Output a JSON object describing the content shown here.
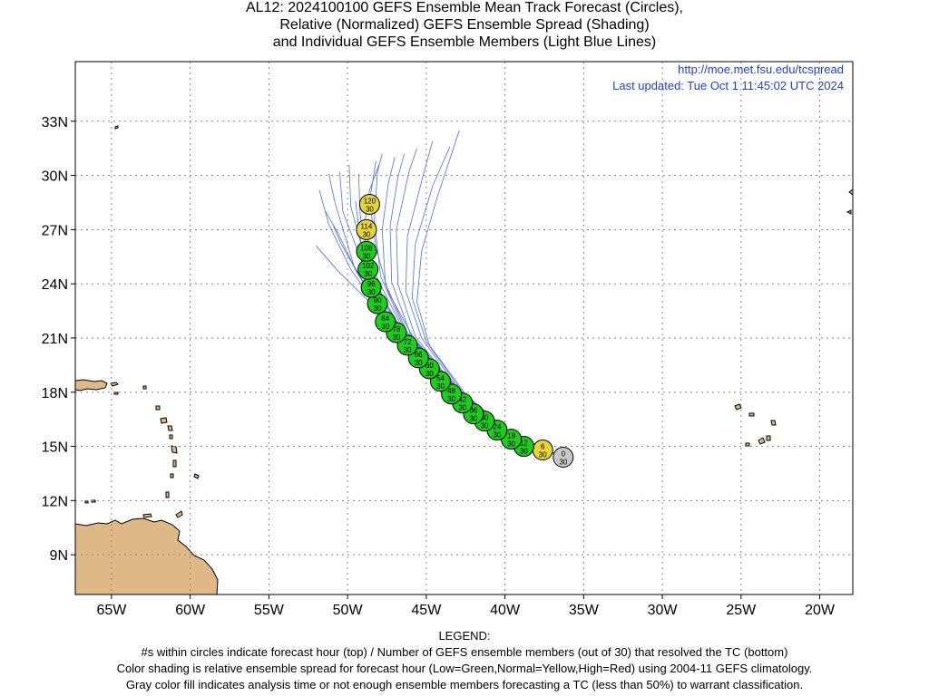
{
  "title": {
    "line1": "AL12: 2024100100 GEFS Ensemble Mean Track Forecast (Circles),",
    "line2": "Relative (Normalized) GEFS Ensemble Spread (Shading)",
    "line3": "and Individual GEFS Ensemble Members (Light Blue Lines)"
  },
  "info": {
    "url": "http://moe.met.fsu.edu/tcspread",
    "updated": "Last updated: Tue Oct 1 11:45:02 UTC 2024"
  },
  "map": {
    "lon_range": [
      -67.3,
      -17.9
    ],
    "lat_range": [
      6.8,
      36.3
    ],
    "lat_ticks": [
      {
        "value": 9,
        "label": "9N"
      },
      {
        "value": 12,
        "label": "12N"
      },
      {
        "value": 15,
        "label": "15N"
      },
      {
        "value": 18,
        "label": "18N"
      },
      {
        "value": 21,
        "label": "21N"
      },
      {
        "value": 24,
        "label": "24N"
      },
      {
        "value": 27,
        "label": "27N"
      },
      {
        "value": 30,
        "label": "30N"
      },
      {
        "value": 33,
        "label": "33N"
      }
    ],
    "lon_ticks": [
      {
        "value": -65,
        "label": "65W"
      },
      {
        "value": -60,
        "label": "60W"
      },
      {
        "value": -55,
        "label": "55W"
      },
      {
        "value": -50,
        "label": "50W"
      },
      {
        "value": -45,
        "label": "45W"
      },
      {
        "value": -40,
        "label": "40W"
      },
      {
        "value": -35,
        "label": "35W"
      },
      {
        "value": -30,
        "label": "30W"
      },
      {
        "value": -25,
        "label": "25W"
      },
      {
        "value": -20,
        "label": "20W"
      }
    ],
    "colors": {
      "land": "#deb887",
      "grid": "#888888",
      "member_track": "#4f6fe0",
      "low_spread": "#1ecc1e",
      "normal_spread": "#e6d53a",
      "analysis": "#c8c8c8"
    }
  },
  "forecast_points": [
    {
      "hour": "0",
      "members": "30",
      "lon": -36.3,
      "lat": 14.4,
      "spread": "analysis"
    },
    {
      "hour": "6",
      "members": "30",
      "lon": -37.6,
      "lat": 14.8,
      "spread": "normal"
    },
    {
      "hour": "12",
      "members": "30",
      "lon": -38.8,
      "lat": 15.0,
      "spread": "low"
    },
    {
      "hour": "18",
      "members": "30",
      "lon": -39.6,
      "lat": 15.4,
      "spread": "low"
    },
    {
      "hour": "24",
      "members": "30",
      "lon": -40.5,
      "lat": 15.9,
      "spread": "low"
    },
    {
      "hour": "30",
      "members": "30",
      "lon": -41.3,
      "lat": 16.4,
      "spread": "low"
    },
    {
      "hour": "36",
      "members": "30",
      "lon": -42.0,
      "lat": 16.8,
      "spread": "low"
    },
    {
      "hour": "42",
      "members": "30",
      "lon": -42.7,
      "lat": 17.4,
      "spread": "low"
    },
    {
      "hour": "48",
      "members": "30",
      "lon": -43.4,
      "lat": 17.9,
      "spread": "low"
    },
    {
      "hour": "54",
      "members": "30",
      "lon": -44.1,
      "lat": 18.6,
      "spread": "low"
    },
    {
      "hour": "60",
      "members": "30",
      "lon": -44.8,
      "lat": 19.3,
      "spread": "low"
    },
    {
      "hour": "66",
      "members": "30",
      "lon": -45.5,
      "lat": 19.9,
      "spread": "low"
    },
    {
      "hour": "72",
      "members": "30",
      "lon": -46.2,
      "lat": 20.6,
      "spread": "low"
    },
    {
      "hour": "78",
      "members": "30",
      "lon": -46.9,
      "lat": 21.3,
      "spread": "low"
    },
    {
      "hour": "84",
      "members": "30",
      "lon": -47.6,
      "lat": 21.9,
      "spread": "low"
    },
    {
      "hour": "90",
      "members": "30",
      "lon": -48.1,
      "lat": 22.9,
      "spread": "low"
    },
    {
      "hour": "96",
      "members": "30",
      "lon": -48.5,
      "lat": 23.8,
      "spread": "low"
    },
    {
      "hour": "102",
      "members": "30",
      "lon": -48.7,
      "lat": 24.8,
      "spread": "low"
    },
    {
      "hour": "108",
      "members": "30",
      "lon": -48.8,
      "lat": 25.8,
      "spread": "low"
    },
    {
      "hour": "114",
      "members": "30",
      "lon": -48.8,
      "lat": 27.0,
      "spread": "normal"
    },
    {
      "hour": "120",
      "members": "30",
      "lon": -48.6,
      "lat": 28.4,
      "spread": "normal"
    }
  ],
  "member_tracks": [
    [
      [
        -36.3,
        14.4
      ],
      [
        -40.5,
        16.0
      ],
      [
        -44.5,
        19.0
      ],
      [
        -47.8,
        22.3
      ],
      [
        -50.6,
        24.7
      ],
      [
        -52.0,
        26.1
      ]
    ],
    [
      [
        -36.3,
        14.4
      ],
      [
        -40.3,
        15.9
      ],
      [
        -44.2,
        18.8
      ],
      [
        -47.5,
        22.0
      ],
      [
        -49.8,
        24.8
      ],
      [
        -51.2,
        27.3
      ],
      [
        -51.8,
        29.2
      ]
    ],
    [
      [
        -36.3,
        14.4
      ],
      [
        -40.4,
        16.0
      ],
      [
        -44.3,
        19.0
      ],
      [
        -47.6,
        22.0
      ],
      [
        -49.6,
        25.0
      ],
      [
        -50.8,
        28.5
      ],
      [
        -51.2,
        30.1
      ]
    ],
    [
      [
        -36.3,
        14.4
      ],
      [
        -40.3,
        15.9
      ],
      [
        -44.0,
        18.9
      ],
      [
        -47.2,
        22.2
      ],
      [
        -49.0,
        25.0
      ],
      [
        -50.3,
        28.0
      ],
      [
        -50.5,
        30.2
      ]
    ],
    [
      [
        -36.3,
        14.4
      ],
      [
        -40.2,
        15.9
      ],
      [
        -43.9,
        18.7
      ],
      [
        -47.0,
        22.0
      ],
      [
        -48.8,
        25.1
      ],
      [
        -49.8,
        28.3
      ],
      [
        -49.9,
        30.6
      ]
    ],
    [
      [
        -36.3,
        14.4
      ],
      [
        -40.1,
        15.8
      ],
      [
        -43.7,
        18.6
      ],
      [
        -46.8,
        21.6
      ],
      [
        -48.5,
        24.6
      ],
      [
        -49.2,
        27.8
      ],
      [
        -49.3,
        30.1
      ]
    ],
    [
      [
        -36.3,
        14.4
      ],
      [
        -40.0,
        15.8
      ],
      [
        -43.5,
        18.5
      ],
      [
        -46.4,
        21.5
      ],
      [
        -47.9,
        24.4
      ],
      [
        -48.3,
        27.5
      ],
      [
        -48.1,
        30.2
      ],
      [
        -47.8,
        31.2
      ]
    ],
    [
      [
        -36.3,
        14.4
      ],
      [
        -39.9,
        15.7
      ],
      [
        -43.4,
        18.4
      ],
      [
        -46.2,
        21.3
      ],
      [
        -47.6,
        24.0
      ],
      [
        -47.8,
        27.0
      ],
      [
        -47.4,
        29.6
      ],
      [
        -47.0,
        31.0
      ]
    ],
    [
      [
        -36.3,
        14.4
      ],
      [
        -39.8,
        15.7
      ],
      [
        -43.3,
        18.3
      ],
      [
        -46.0,
        21.2
      ],
      [
        -47.2,
        24.1
      ],
      [
        -47.3,
        27.2
      ],
      [
        -46.8,
        29.9
      ],
      [
        -46.4,
        31.2
      ]
    ],
    [
      [
        -36.3,
        14.4
      ],
      [
        -39.7,
        15.6
      ],
      [
        -43.1,
        18.2
      ],
      [
        -45.7,
        21.1
      ],
      [
        -46.8,
        24.0
      ],
      [
        -46.9,
        27.0
      ],
      [
        -46.1,
        30.2
      ],
      [
        -45.6,
        31.5
      ]
    ],
    [
      [
        -36.3,
        14.4
      ],
      [
        -39.6,
        15.6
      ],
      [
        -42.9,
        18.1
      ],
      [
        -45.3,
        21.0
      ],
      [
        -46.3,
        23.6
      ],
      [
        -46.2,
        26.6
      ],
      [
        -45.2,
        30.0
      ],
      [
        -44.6,
        31.9
      ]
    ],
    [
      [
        -36.3,
        14.4
      ],
      [
        -39.5,
        15.5
      ],
      [
        -42.7,
        18.0
      ],
      [
        -45.0,
        20.8
      ],
      [
        -45.9,
        23.2
      ],
      [
        -45.7,
        26.2
      ],
      [
        -44.6,
        29.4
      ],
      [
        -43.5,
        31.6
      ]
    ],
    [
      [
        -36.3,
        14.4
      ],
      [
        -39.4,
        15.5
      ],
      [
        -42.5,
        17.9
      ],
      [
        -44.8,
        20.6
      ],
      [
        -45.6,
        23.0
      ],
      [
        -45.3,
        25.8
      ],
      [
        -44.3,
        28.8
      ],
      [
        -42.9,
        32.5
      ]
    ],
    [
      [
        -36.3,
        14.4
      ],
      [
        -39.6,
        15.6
      ],
      [
        -43.0,
        18.2
      ],
      [
        -45.8,
        21.0
      ],
      [
        -47.4,
        23.5
      ],
      [
        -48.2,
        26.0
      ],
      [
        -48.6,
        28.6
      ],
      [
        -48.2,
        30.8
      ]
    ],
    [
      [
        -36.3,
        14.4
      ],
      [
        -39.8,
        15.7
      ],
      [
        -43.4,
        18.5
      ],
      [
        -46.5,
        21.4
      ],
      [
        -48.3,
        24.0
      ],
      [
        -49.2,
        26.5
      ],
      [
        -49.5,
        28.6
      ]
    ],
    [
      [
        -36.3,
        14.4
      ],
      [
        -40.0,
        15.8
      ],
      [
        -43.6,
        18.6
      ],
      [
        -46.9,
        21.8
      ],
      [
        -49.1,
        24.2
      ],
      [
        -50.4,
        26.2
      ],
      [
        -50.9,
        27.2
      ]
    ],
    [
      [
        -36.3,
        14.4
      ],
      [
        -40.2,
        15.9
      ],
      [
        -44.1,
        18.9
      ],
      [
        -47.4,
        22.1
      ],
      [
        -49.4,
        24.6
      ],
      [
        -50.6,
        26.8
      ],
      [
        -51.4,
        28.0
      ]
    ],
    [
      [
        -36.3,
        14.4
      ],
      [
        -39.9,
        15.8
      ],
      [
        -43.5,
        18.6
      ],
      [
        -46.6,
        21.7
      ],
      [
        -48.4,
        24.8
      ],
      [
        -48.9,
        27.4
      ],
      [
        -48.6,
        29.2
      ],
      [
        -48.0,
        30.6
      ]
    ]
  ],
  "legend": {
    "heading": "LEGEND:",
    "line1": "#s within circles indicate forecast hour (top) / Number of GEFS ensemble members (out of 30) that resolved the TC (bottom)",
    "line2": "Color shading is relative ensemble spread for forecast hour (Low=Green,Normal=Yellow,High=Red) using 2004-11 GEFS climatology.",
    "line3": "Gray color fill indicates analysis time or not enough ensemble members forecasting a TC (less than 50%) to warrant classification."
  }
}
